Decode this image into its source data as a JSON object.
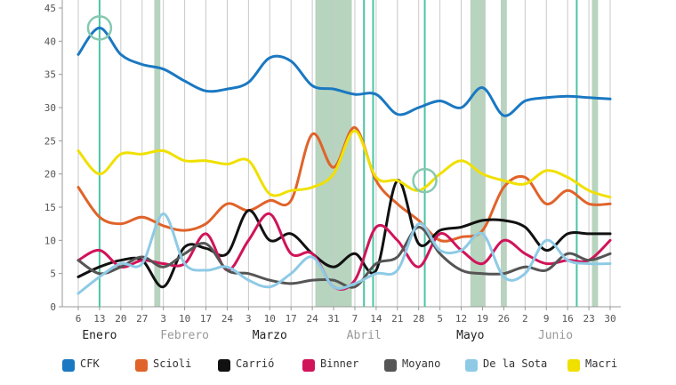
{
  "chart_data": {
    "type": "line",
    "ylim": [
      0,
      45
    ],
    "yticks": [
      0,
      5,
      10,
      15,
      20,
      25,
      30,
      35,
      40,
      45
    ],
    "grid": "vertical",
    "legend_position": "bottom",
    "x": [
      6,
      13,
      20,
      27,
      34,
      41,
      48,
      55,
      62,
      69,
      76,
      83,
      90,
      97,
      104,
      111,
      118,
      125,
      132,
      139,
      146,
      153,
      160,
      167,
      174,
      181
    ],
    "x_tick_labels": [
      "6",
      "13",
      "20",
      "27",
      "3",
      "10",
      "17",
      "24",
      "3",
      "10",
      "17",
      "24",
      "31",
      "7",
      "14",
      "21",
      "28",
      "5",
      "12",
      "19",
      "26",
      "2",
      "9",
      "16",
      "23",
      "30"
    ],
    "months": [
      {
        "label": "Enero",
        "x": 13,
        "color": "#222222"
      },
      {
        "label": "Febrero",
        "x": 41,
        "color": "#999999"
      },
      {
        "label": "Marzo",
        "x": 69,
        "color": "#222222"
      },
      {
        "label": "Abril",
        "x": 100,
        "color": "#999999"
      },
      {
        "label": "Mayo",
        "x": 135,
        "color": "#222222"
      },
      {
        "label": "Junio",
        "x": 163,
        "color": "#999999"
      }
    ],
    "shaded_bands": [
      [
        31,
        33
      ],
      [
        84,
        96
      ],
      [
        135,
        140
      ],
      [
        145,
        147
      ],
      [
        175,
        177
      ]
    ],
    "event_lines": [
      13,
      100,
      103,
      120,
      170
    ],
    "highlights": [
      {
        "x": 13,
        "y": 42
      },
      {
        "x": 120,
        "y": 19
      }
    ],
    "series": [
      {
        "name": "CFK",
        "color": "#1a78c2",
        "values": [
          38,
          42,
          38,
          36.5,
          35.8,
          34,
          32.5,
          32.8,
          33.8,
          37.5,
          37,
          33.3,
          32.8,
          32,
          32,
          29,
          30,
          31,
          30,
          33,
          28.8,
          31,
          31.5,
          31.7,
          31.5,
          31.3
        ]
      },
      {
        "name": "Scioli",
        "color": "#e0632a",
        "values": [
          18,
          13.5,
          12.5,
          13.5,
          12.2,
          11.5,
          12.5,
          15.5,
          14.5,
          16,
          16,
          26,
          21,
          27,
          19,
          15.5,
          13,
          10,
          10.5,
          11.5,
          18,
          19.5,
          15.5,
          17.5,
          15.5,
          15.5
        ]
      },
      {
        "name": "Carrió",
        "color": "#111111",
        "values": [
          4.5,
          6,
          7,
          7,
          3,
          9,
          8.8,
          8,
          14.5,
          10,
          11,
          8,
          6,
          8,
          5.5,
          19,
          9.5,
          11.5,
          12,
          13,
          13,
          12,
          8.5,
          11,
          11,
          11
        ]
      },
      {
        "name": "Binner",
        "color": "#d0145a",
        "values": [
          7,
          8.5,
          6,
          7,
          6.5,
          6.5,
          11,
          5.5,
          10,
          14,
          8,
          8,
          3,
          4,
          12,
          10,
          6,
          11,
          8.5,
          6.5,
          10,
          8,
          6.5,
          7,
          7,
          10
        ]
      },
      {
        "name": "Moyano",
        "color": "#555555",
        "values": [
          7,
          5,
          6,
          7.5,
          6,
          8,
          9.5,
          5.5,
          5,
          4,
          3.5,
          4,
          4,
          3,
          6.5,
          7.5,
          12,
          8,
          5.5,
          5,
          5,
          6,
          5.5,
          8,
          7,
          8
        ]
      },
      {
        "name": "De la Sota",
        "color": "#8ecae6",
        "values": [
          2,
          4.5,
          6.5,
          6.5,
          14,
          6.5,
          5.5,
          6,
          4,
          3,
          5,
          7.5,
          3,
          3.5,
          5,
          5.5,
          12.5,
          8.5,
          8.5,
          11,
          4.5,
          5,
          10,
          7,
          6.5,
          6.5
        ]
      },
      {
        "name": "Macri",
        "color": "#f0e000",
        "values": [
          23.5,
          20,
          23,
          23,
          23.5,
          22,
          22,
          21.5,
          22,
          17,
          17.5,
          18,
          20,
          26.5,
          19.5,
          19,
          17.5,
          20,
          22,
          20,
          19,
          18.5,
          20.5,
          19.5,
          17.5,
          16.5
        ]
      }
    ]
  }
}
